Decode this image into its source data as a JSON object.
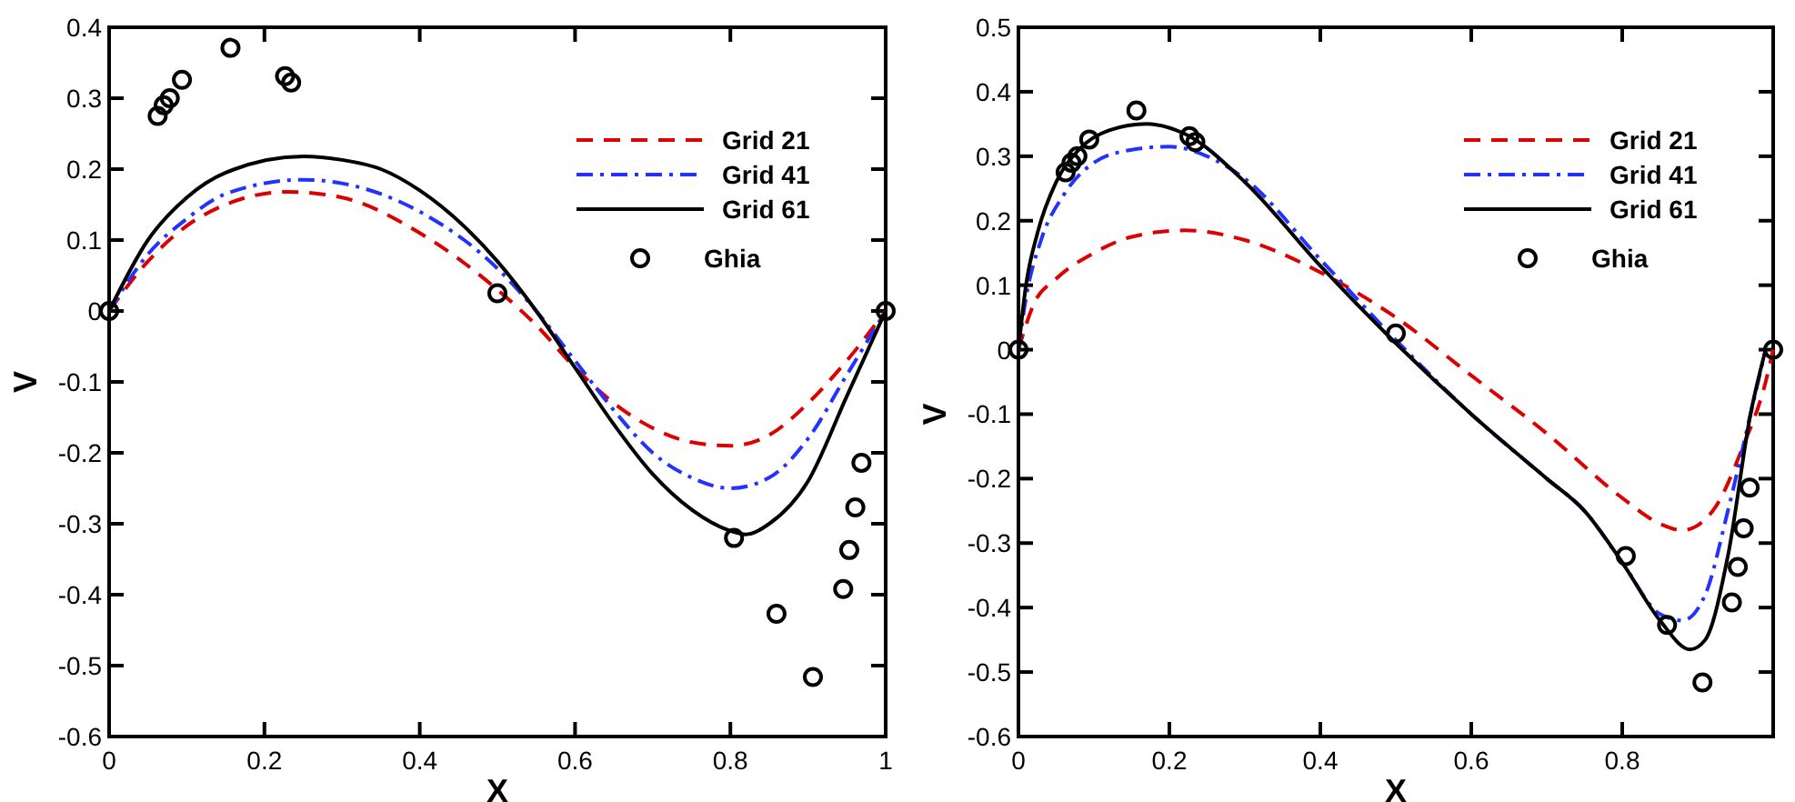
{
  "chart_data": [
    {
      "type": "line",
      "xlabel": "X",
      "ylabel": "V",
      "xlim": [
        0,
        1
      ],
      "ylim": [
        -0.6,
        0.4
      ],
      "xticks": [
        0,
        0.2,
        0.4,
        0.6,
        0.8,
        1
      ],
      "yticks": [
        -0.6,
        -0.5,
        -0.4,
        -0.3,
        -0.2,
        -0.1,
        0,
        0.1,
        0.2,
        0.3,
        0.4
      ],
      "legend": "top right",
      "grid": false,
      "series": [
        {
          "name": "Grid 21",
          "color": "#dd0000",
          "line_style": "dashed",
          "marker": "none",
          "x": [
            0,
            0.05,
            0.1,
            0.15,
            0.23,
            0.3,
            0.4,
            0.5,
            0.55,
            0.6,
            0.65,
            0.7,
            0.75,
            0.8,
            0.85,
            0.9,
            0.95,
            1
          ],
          "values": [
            0,
            0.07,
            0.12,
            0.15,
            0.168,
            0.16,
            0.11,
            0.03,
            -0.02,
            -0.08,
            -0.13,
            -0.165,
            -0.185,
            -0.19,
            -0.175,
            -0.13,
            -0.07,
            0
          ]
        },
        {
          "name": "Grid 41",
          "color": "#2233ff",
          "line_style": "dashdot",
          "marker": "none",
          "x": [
            0,
            0.05,
            0.1,
            0.15,
            0.25,
            0.3,
            0.4,
            0.5,
            0.55,
            0.6,
            0.65,
            0.7,
            0.75,
            0.8,
            0.85,
            0.9,
            0.95,
            1
          ],
          "values": [
            0,
            0.08,
            0.13,
            0.165,
            0.185,
            0.18,
            0.14,
            0.06,
            0,
            -0.07,
            -0.14,
            -0.2,
            -0.235,
            -0.25,
            -0.235,
            -0.18,
            -0.09,
            0
          ]
        },
        {
          "name": "Grid 61",
          "color": "#000000",
          "line_style": "solid",
          "marker": "none",
          "x": [
            0,
            0.05,
            0.1,
            0.15,
            0.25,
            0.3,
            0.35,
            0.4,
            0.5,
            0.55,
            0.6,
            0.65,
            0.7,
            0.75,
            0.8,
            0.82,
            0.85,
            0.9,
            0.95,
            1
          ],
          "values": [
            0,
            0.1,
            0.16,
            0.195,
            0.218,
            0.213,
            0.2,
            0.17,
            0.07,
            0,
            -0.08,
            -0.16,
            -0.23,
            -0.28,
            -0.31,
            -0.315,
            -0.3,
            -0.24,
            -0.12,
            0
          ]
        },
        {
          "name": "Ghia",
          "type": "scatter",
          "color": "#000000",
          "marker": "circle",
          "x": [
            0,
            0.0625,
            0.0703,
            0.0781,
            0.0938,
            0.1563,
            0.2266,
            0.2344,
            0.5,
            0.8047,
            0.8594,
            0.9063,
            0.9453,
            0.9531,
            0.9609,
            0.9688,
            1
          ],
          "values": [
            0,
            0.275,
            0.29,
            0.3,
            0.326,
            0.371,
            0.331,
            0.322,
            0.025,
            -0.32,
            -0.427,
            -0.516,
            -0.392,
            -0.337,
            -0.277,
            -0.214,
            0
          ]
        }
      ]
    },
    {
      "type": "line",
      "xlabel": "X",
      "ylabel": "V",
      "xlim": [
        0,
        1
      ],
      "ylim": [
        -0.6,
        0.5
      ],
      "xticks": [
        0,
        0.2,
        0.4,
        0.6,
        0.8,
        {
          "value": 1,
          "label": null
        }
      ],
      "yticks": [
        -0.6,
        -0.5,
        -0.4,
        -0.3,
        -0.2,
        -0.1,
        0,
        0.1,
        0.2,
        0.3,
        0.4,
        0.5
      ],
      "legend": "top right",
      "grid": false,
      "series": [
        {
          "name": "Grid 21",
          "color": "#dd0000",
          "line_style": "dashed",
          "marker": "none",
          "x": [
            0,
            0.02,
            0.05,
            0.1,
            0.15,
            0.22,
            0.3,
            0.4,
            0.5,
            0.6,
            0.7,
            0.8,
            0.85,
            0.88,
            0.92,
            0.96,
            0.99,
            1
          ],
          "values": [
            0,
            0.07,
            0.11,
            0.15,
            0.175,
            0.185,
            0.17,
            0.12,
            0.05,
            -0.04,
            -0.13,
            -0.23,
            -0.27,
            -0.28,
            -0.25,
            -0.15,
            -0.05,
            0
          ]
        },
        {
          "name": "Grid 41",
          "color": "#2233ff",
          "line_style": "dashdot",
          "marker": "none",
          "x": [
            0,
            0.01,
            0.03,
            0.06,
            0.1,
            0.15,
            0.2,
            0.25,
            0.3,
            0.4,
            0.5,
            0.6,
            0.7,
            0.75,
            0.8,
            0.85,
            0.88,
            0.91,
            0.94,
            0.97,
            0.99
          ],
          "values": [
            0,
            0.08,
            0.17,
            0.24,
            0.29,
            0.31,
            0.315,
            0.3,
            0.265,
            0.14,
            0.015,
            -0.1,
            -0.2,
            -0.25,
            -0.33,
            -0.41,
            -0.42,
            -0.38,
            -0.25,
            -0.1,
            0
          ]
        },
        {
          "name": "Grid 61",
          "color": "#000000",
          "line_style": "solid",
          "marker": "none",
          "x": [
            0,
            0.01,
            0.025,
            0.05,
            0.08,
            0.12,
            0.17,
            0.22,
            0.3,
            0.4,
            0.5,
            0.6,
            0.7,
            0.75,
            0.8,
            0.85,
            0.89,
            0.91,
            0.94,
            0.97,
            0.99
          ],
          "values": [
            0,
            0.1,
            0.18,
            0.26,
            0.31,
            0.34,
            0.35,
            0.335,
            0.26,
            0.13,
            0.01,
            -0.1,
            -0.2,
            -0.25,
            -0.33,
            -0.42,
            -0.465,
            -0.45,
            -0.32,
            -0.1,
            0
          ]
        },
        {
          "name": "Ghia",
          "type": "scatter",
          "color": "#000000",
          "marker": "circle",
          "x": [
            0,
            0.0625,
            0.0703,
            0.0781,
            0.0938,
            0.1563,
            0.2266,
            0.2344,
            0.5,
            0.8047,
            0.8594,
            0.9063,
            0.9453,
            0.9531,
            0.9609,
            0.9688,
            1
          ],
          "values": [
            0,
            0.275,
            0.29,
            0.3,
            0.326,
            0.371,
            0.331,
            0.322,
            0.025,
            -0.32,
            -0.427,
            -0.516,
            -0.392,
            -0.337,
            -0.277,
            -0.214,
            0
          ]
        }
      ]
    }
  ]
}
